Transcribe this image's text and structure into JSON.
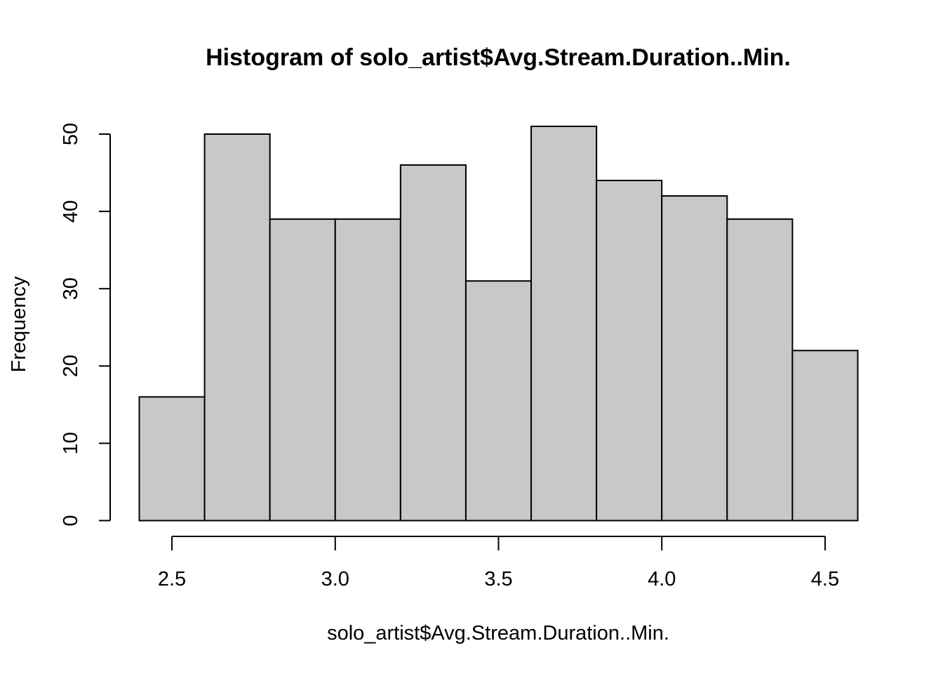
{
  "chart_data": {
    "type": "bar",
    "title": "Histogram of solo_artist$Avg.Stream.Duration..Min.",
    "xlabel": "solo_artist$Avg.Stream.Duration..Min.",
    "ylabel": "Frequency",
    "bins": [
      {
        "start": 2.4,
        "end": 2.6,
        "count": 16
      },
      {
        "start": 2.6,
        "end": 2.8,
        "count": 50
      },
      {
        "start": 2.8,
        "end": 3.0,
        "count": 39
      },
      {
        "start": 3.0,
        "end": 3.2,
        "count": 39
      },
      {
        "start": 3.2,
        "end": 3.4,
        "count": 46
      },
      {
        "start": 3.4,
        "end": 3.6,
        "count": 31
      },
      {
        "start": 3.6,
        "end": 3.8,
        "count": 51
      },
      {
        "start": 3.8,
        "end": 4.0,
        "count": 44
      },
      {
        "start": 4.0,
        "end": 4.2,
        "count": 42
      },
      {
        "start": 4.2,
        "end": 4.4,
        "count": 39
      },
      {
        "start": 4.4,
        "end": 4.6,
        "count": 22
      }
    ],
    "xticks": [
      "2.5",
      "3.0",
      "3.5",
      "4.0",
      "4.5"
    ],
    "yticks": [
      "0",
      "10",
      "20",
      "30",
      "40",
      "50"
    ],
    "xlim": [
      2.4,
      4.6
    ],
    "ylim": [
      0,
      51
    ],
    "bar_color": "#c8c8c8",
    "grid": false
  }
}
